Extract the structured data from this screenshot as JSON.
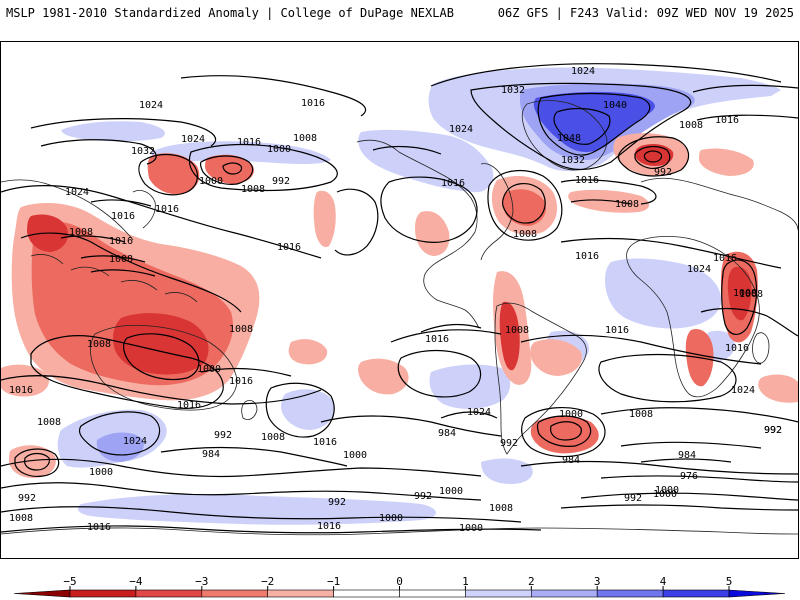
{
  "header": {
    "title_left": "MSLP 1981-2010 Standardized Anomaly | College of DuPage NEXLAB",
    "title_right": "06Z GFS | F243 Valid: 09Z WED NOV 19 2025"
  },
  "colorbar": {
    "min": -5,
    "max": 5,
    "ticks": [
      {
        "label": "−5",
        "value": -5
      },
      {
        "label": "−4",
        "value": -4
      },
      {
        "label": "−3",
        "value": -3
      },
      {
        "label": "−2",
        "value": -2
      },
      {
        "label": "−1",
        "value": -1
      },
      {
        "label": "0",
        "value": 0
      },
      {
        "label": "1",
        "value": 1
      },
      {
        "label": "2",
        "value": 2
      },
      {
        "label": "3",
        "value": 3
      },
      {
        "label": "4",
        "value": 4
      },
      {
        "label": "5",
        "value": 5
      }
    ],
    "colors": [
      "#8b0000",
      "#c81e1e",
      "#e24848",
      "#f07a6e",
      "#f7b0a4",
      "#ffffff",
      "#ffffff",
      "#cfd2fb",
      "#a8adf5",
      "#6f76ee",
      "#3a3fe8",
      "#0a0adc"
    ]
  },
  "anomaly_colors": {
    "neg3": "#d93535",
    "neg2": "#ec6a5f",
    "neg1": "#f8aea2",
    "pos1": "#cdd1fa",
    "pos2": "#9ea4f3",
    "pos3": "#4a50e6"
  },
  "isobar_labels": [
    {
      "id": "l1024a",
      "text": "1024"
    },
    {
      "id": "l1016a",
      "text": "1016"
    },
    {
      "id": "l1024b",
      "text": "1024"
    },
    {
      "id": "l1016b",
      "text": "1016"
    },
    {
      "id": "l1032a",
      "text": "1032"
    },
    {
      "id": "l1000a",
      "text": "1000"
    },
    {
      "id": "l1008a",
      "text": "1008"
    },
    {
      "id": "l992a",
      "text": "992"
    },
    {
      "id": "l1000b",
      "text": "1000"
    },
    {
      "id": "l1008b",
      "text": "1008"
    },
    {
      "id": "l1016c",
      "text": "1016"
    },
    {
      "id": "l1024c",
      "text": "1024"
    },
    {
      "id": "l1016d",
      "text": "1016"
    },
    {
      "id": "l1008c",
      "text": "1008"
    },
    {
      "id": "l1016e",
      "text": "1016"
    },
    {
      "id": "l1008d",
      "text": "1008"
    },
    {
      "id": "l1016f",
      "text": "1016"
    },
    {
      "id": "l1008e",
      "text": "1008"
    },
    {
      "id": "l1008f",
      "text": "1008"
    },
    {
      "id": "l1000c",
      "text": "1000"
    },
    {
      "id": "l1016g",
      "text": "1016"
    },
    {
      "id": "l1016h",
      "text": "1016"
    },
    {
      "id": "l1016i",
      "text": "1016"
    },
    {
      "id": "l1024d",
      "text": "1024"
    },
    {
      "id": "l1008g",
      "text": "1008"
    },
    {
      "id": "l992b",
      "text": "992"
    },
    {
      "id": "l1008h",
      "text": "1008"
    },
    {
      "id": "l1016j",
      "text": "1016"
    },
    {
      "id": "l984a",
      "text": "984"
    },
    {
      "id": "l1000d",
      "text": "1000"
    },
    {
      "id": "l1000e",
      "text": "1000"
    },
    {
      "id": "l992c",
      "text": "992"
    },
    {
      "id": "l1008i",
      "text": "1008"
    },
    {
      "id": "l1016k",
      "text": "1016"
    },
    {
      "id": "l1016l",
      "text": "1016"
    },
    {
      "id": "l1024e",
      "text": "1024"
    },
    {
      "id": "l1032b",
      "text": "1032"
    },
    {
      "id": "l1040a",
      "text": "1040"
    },
    {
      "id": "l1048a",
      "text": "1048"
    },
    {
      "id": "l1032c",
      "text": "1032"
    },
    {
      "id": "l1024f",
      "text": "1024"
    },
    {
      "id": "l1024g",
      "text": "1024"
    },
    {
      "id": "l1016m",
      "text": "1016"
    },
    {
      "id": "l1016n",
      "text": "1016"
    },
    {
      "id": "l1008j",
      "text": "1008"
    },
    {
      "id": "l1008k",
      "text": "1008"
    },
    {
      "id": "l1016o",
      "text": "1016"
    },
    {
      "id": "l1016p",
      "text": "1016"
    },
    {
      "id": "l1008l",
      "text": "1008"
    },
    {
      "id": "l1016q",
      "text": "1016"
    },
    {
      "id": "l1016r",
      "text": "1016"
    },
    {
      "id": "l1024h",
      "text": "1024"
    },
    {
      "id": "l1000f",
      "text": "1000"
    },
    {
      "id": "l1008m",
      "text": "1008"
    },
    {
      "id": "l984b",
      "text": "984"
    },
    {
      "id": "l992d",
      "text": "992"
    },
    {
      "id": "l984c",
      "text": "984"
    },
    {
      "id": "l992e",
      "text": "992"
    },
    {
      "id": "l1000g",
      "text": "1000"
    },
    {
      "id": "l1016s",
      "text": "1016"
    },
    {
      "id": "l1024i",
      "text": "1024"
    },
    {
      "id": "l1008n",
      "text": "1008"
    },
    {
      "id": "l1008o",
      "text": "1008"
    },
    {
      "id": "l1008p",
      "text": "1008"
    },
    {
      "id": "l992f",
      "text": "992"
    },
    {
      "id": "l1000h",
      "text": "1000"
    },
    {
      "id": "l1000i",
      "text": "1000"
    },
    {
      "id": "l1000j",
      "text": "1000"
    },
    {
      "id": "l992g",
      "text": "992"
    },
    {
      "id": "l1008q",
      "text": "1008"
    },
    {
      "id": "l984d",
      "text": "984"
    },
    {
      "id": "l976a",
      "text": "976"
    },
    {
      "id": "l992h",
      "text": "992"
    },
    {
      "id": "l992i",
      "text": "992"
    },
    {
      "id": "l1000k",
      "text": "1000"
    },
    {
      "id": "l1016t",
      "text": "1016"
    },
    {
      "id": "l992j",
      "text": "992"
    }
  ]
}
